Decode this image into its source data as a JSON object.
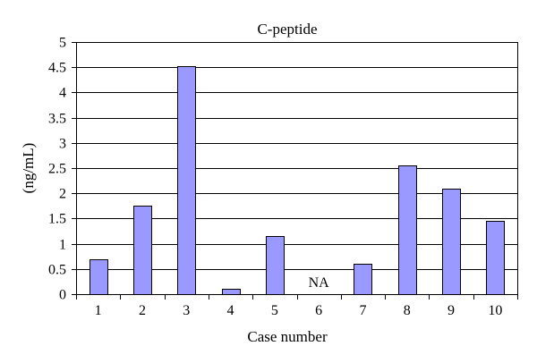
{
  "chart_data": {
    "type": "bar",
    "title": "C-peptide",
    "xlabel": "Case number",
    "ylabel": "(ng/mL)",
    "categories": [
      "1",
      "2",
      "3",
      "4",
      "5",
      "6",
      "7",
      "8",
      "9",
      "10"
    ],
    "values": [
      0.7,
      1.75,
      4.52,
      0.1,
      1.15,
      null,
      0.6,
      2.55,
      2.1,
      1.45
    ],
    "ylim": [
      0,
      5
    ],
    "yticks": [
      "0",
      "0.5",
      "1",
      "1.5",
      "2",
      "2.5",
      "3",
      "3.5",
      "4",
      "4.5",
      "5"
    ],
    "ytick_values": [
      0,
      0.5,
      1,
      1.5,
      2,
      2.5,
      3,
      3.5,
      4,
      4.5,
      5
    ],
    "grid": true,
    "legend": "none",
    "annotations": [
      {
        "category": "6",
        "text": "NA"
      }
    ],
    "colors": {
      "bar": "#9999ff",
      "bar_edge": "#000000",
      "grid": "#000000"
    }
  }
}
